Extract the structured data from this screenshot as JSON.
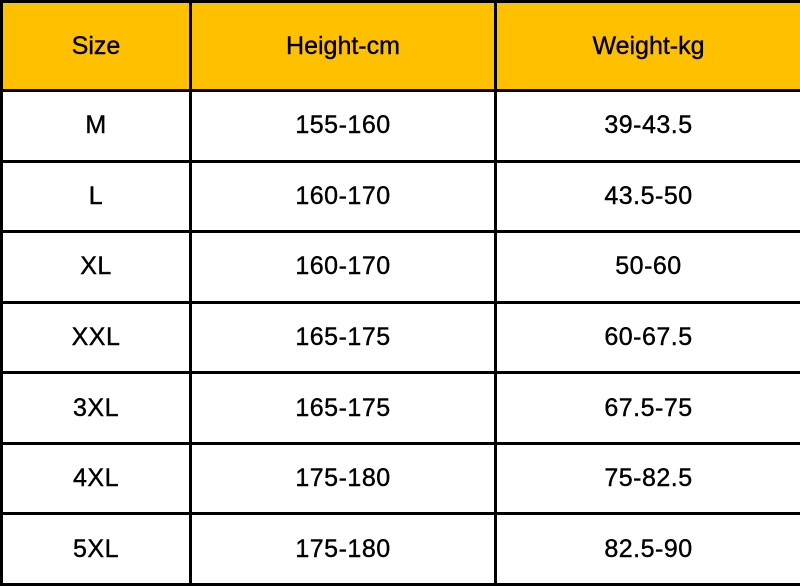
{
  "colors": {
    "header_background": "#FFC000",
    "border": "#000000"
  },
  "table": {
    "headers": [
      "Size",
      "Height-cm",
      "Weight-kg"
    ],
    "rows": [
      [
        "M",
        "155-160",
        "39-43.5"
      ],
      [
        "L",
        "160-170",
        "43.5-50"
      ],
      [
        "XL",
        "160-170",
        "50-60"
      ],
      [
        "XXL",
        "165-175",
        "60-67.5"
      ],
      [
        "3XL",
        "165-175",
        "67.5-75"
      ],
      [
        "4XL",
        "175-180",
        "75-82.5"
      ],
      [
        "5XL",
        "175-180",
        "82.5-90"
      ]
    ]
  }
}
